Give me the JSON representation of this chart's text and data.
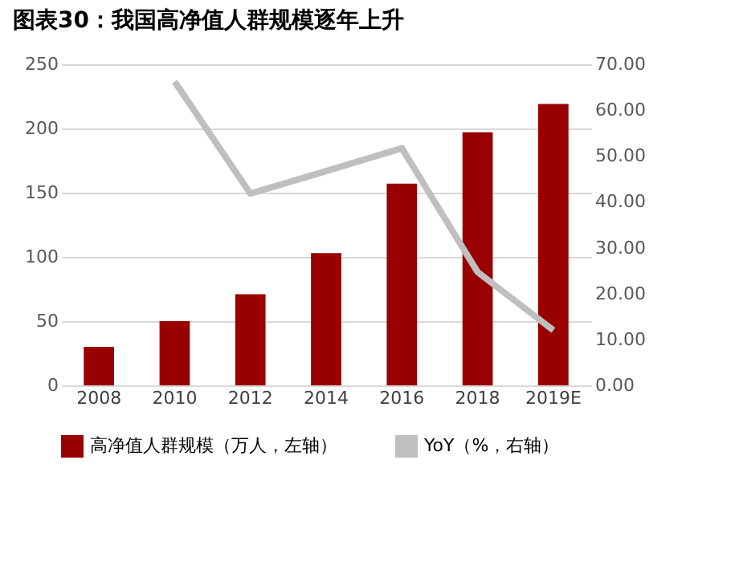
{
  "chart_data": {
    "type": "bar",
    "title": "图表30：我国高净值人群规模逐年上升",
    "categories": [
      "2008",
      "2010",
      "2012",
      "2014",
      "2016",
      "2018",
      "2019E"
    ],
    "series": [
      {
        "name": "高净值人群规模（万人，左轴）",
        "color": "#990000",
        "values": [
          30,
          50,
          71,
          103,
          157,
          197,
          219
        ]
      },
      {
        "name": "YoY（%，右轴）",
        "type": "line",
        "axis": "y2",
        "color": "#bfbfbf",
        "values": [
          null,
          66.2,
          41.8,
          46.7,
          51.7,
          24.7,
          12.0
        ]
      }
    ],
    "ylim": [
      0,
      250
    ],
    "yticks": [
      0,
      50,
      100,
      150,
      200,
      250
    ],
    "y2lim": [
      0,
      70
    ],
    "y2ticks": [
      {
        "value": 0,
        "label": "0.00"
      },
      {
        "value": 10,
        "label": "10.00"
      },
      {
        "value": 20,
        "label": "20.00"
      },
      {
        "value": 30,
        "label": "30.00"
      },
      {
        "value": 40,
        "label": "40.00"
      },
      {
        "value": 50,
        "label": "50.00"
      },
      {
        "value": 60,
        "label": "60.00"
      },
      {
        "value": 70,
        "label": "70.00"
      }
    ],
    "grid": "y",
    "legend": "bottom"
  }
}
